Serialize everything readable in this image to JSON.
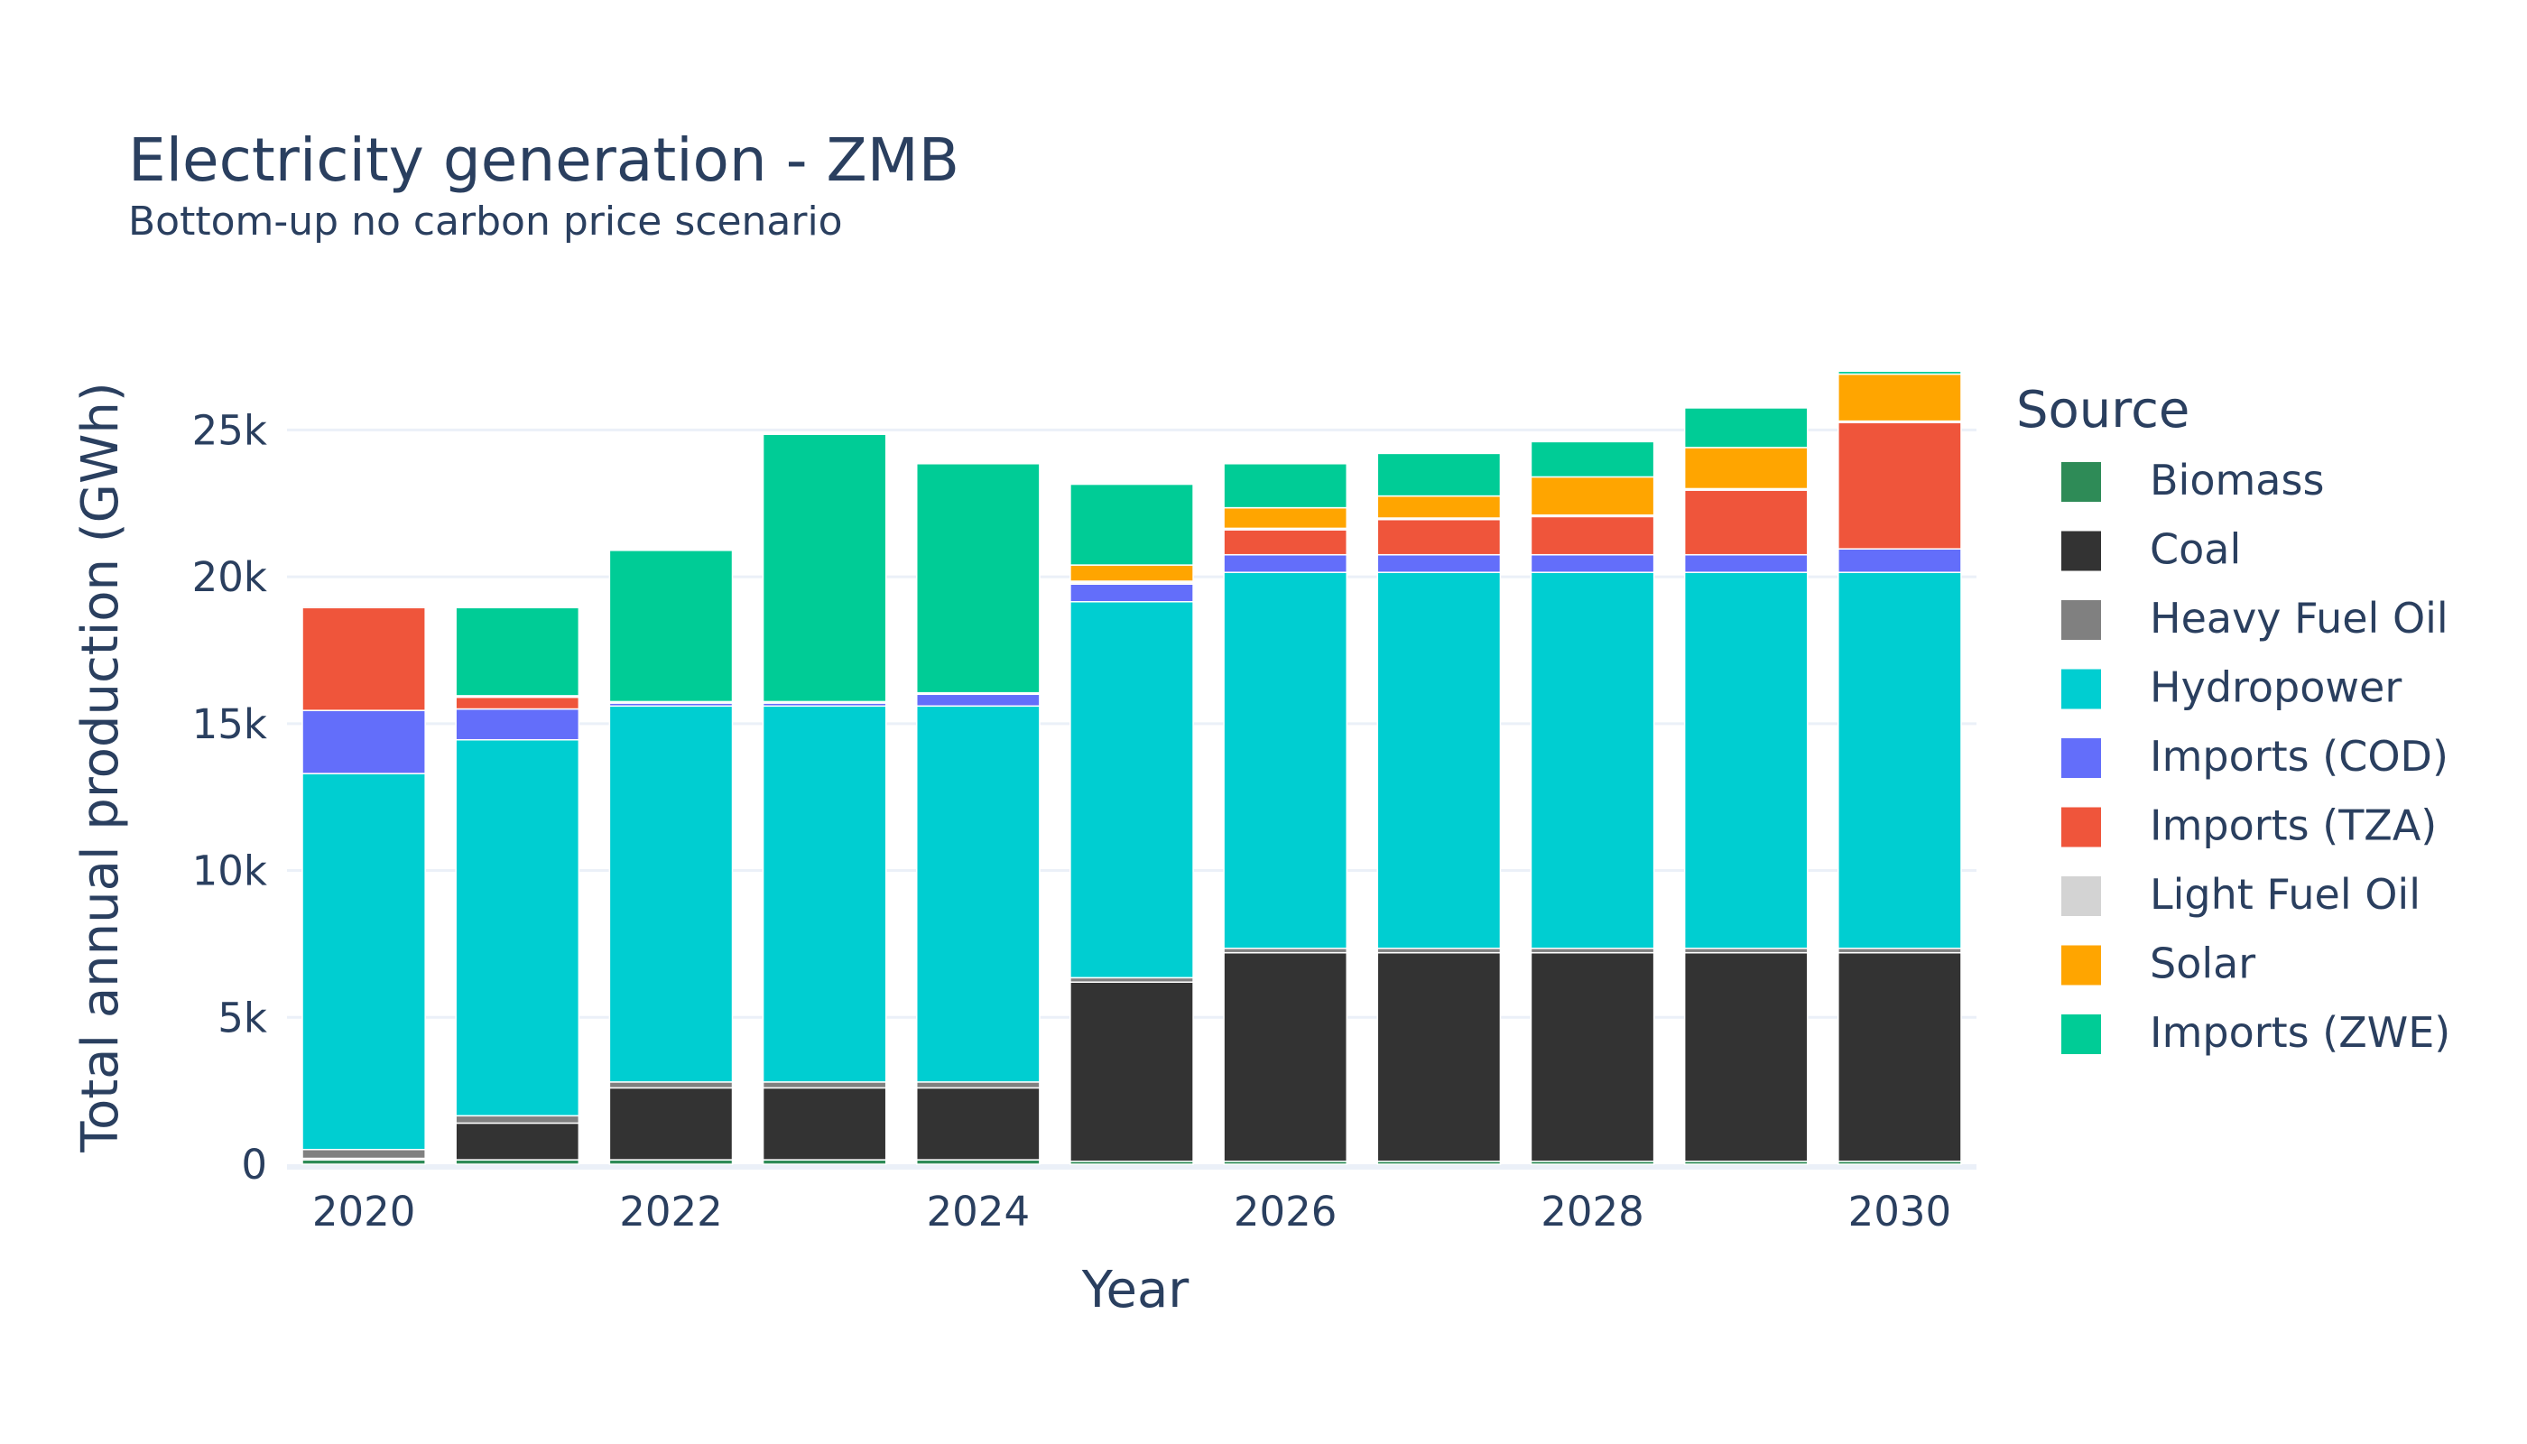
{
  "chart_data": {
    "type": "bar",
    "stacked": true,
    "title": "Electricity generation - ZMB",
    "subtitle": "Bottom-up no carbon price scenario",
    "xlabel": "Year",
    "ylabel": "Total annual production (GWh)",
    "x": [
      2020,
      2021,
      2022,
      2023,
      2024,
      2025,
      2026,
      2027,
      2028,
      2029,
      2030
    ],
    "x_ticks": [
      2020,
      2022,
      2024,
      2026,
      2028,
      2030
    ],
    "x_tick_labels": [
      "2020",
      "2022",
      "2024",
      "2026",
      "2028",
      "2030"
    ],
    "ylim": [
      0,
      27500
    ],
    "y_ticks": [
      0,
      5000,
      10000,
      15000,
      20000,
      25000
    ],
    "y_tick_labels": [
      "0",
      "5k",
      "10k",
      "15k",
      "20k",
      "25k"
    ],
    "grid": true,
    "legend": {
      "title": "Source",
      "position": "right"
    },
    "series": [
      {
        "name": "Biomass",
        "color": "#2e8b57",
        "values": [
          150,
          150,
          150,
          150,
          150,
          100,
          100,
          100,
          100,
          100,
          100
        ]
      },
      {
        "name": "Coal",
        "color": "#333333",
        "values": [
          50,
          1250,
          2450,
          2450,
          2450,
          6100,
          7100,
          7100,
          7100,
          7100,
          7100
        ]
      },
      {
        "name": "Heavy Fuel Oil",
        "color": "#808080",
        "values": [
          300,
          250,
          200,
          200,
          200,
          150,
          150,
          150,
          150,
          150,
          150
        ]
      },
      {
        "name": "Hydropower",
        "color": "#00ced1",
        "values": [
          12800,
          12800,
          12800,
          12800,
          12800,
          12800,
          12800,
          12800,
          12800,
          12800,
          12800
        ]
      },
      {
        "name": "Imports (COD)",
        "color": "#636efa",
        "values": [
          2150,
          1050,
          100,
          100,
          400,
          600,
          600,
          600,
          600,
          600,
          800
        ]
      },
      {
        "name": "Imports (TZA)",
        "color": "#ef553b",
        "values": [
          3500,
          400,
          0,
          0,
          0,
          50,
          850,
          1200,
          1300,
          2200,
          4300
        ]
      },
      {
        "name": "Light Fuel Oil",
        "color": "#d3d3d3",
        "values": [
          50,
          50,
          50,
          50,
          50,
          50,
          50,
          50,
          50,
          50,
          50
        ]
      },
      {
        "name": "Solar",
        "color": "#ffa500",
        "values": [
          0,
          0,
          0,
          0,
          0,
          550,
          700,
          750,
          1300,
          1400,
          1600
        ]
      },
      {
        "name": "Imports (ZWE)",
        "color": "#00cc96",
        "values": [
          0,
          3000,
          5150,
          9100,
          7800,
          2750,
          1500,
          1450,
          1200,
          1350,
          100
        ]
      }
    ]
  }
}
